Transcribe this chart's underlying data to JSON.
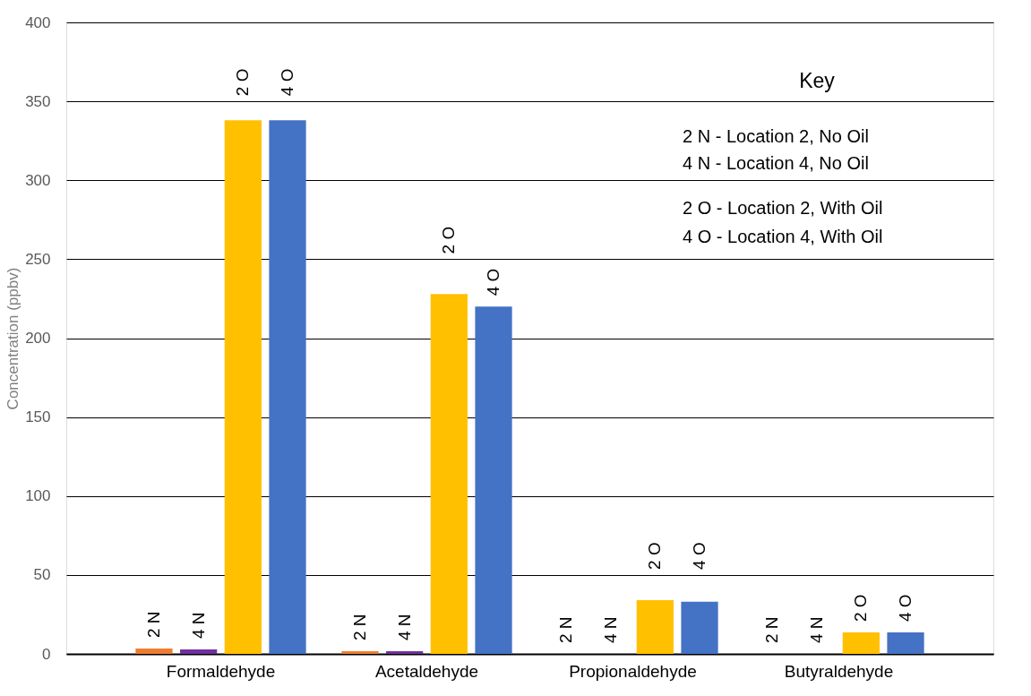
{
  "chart_data": {
    "type": "bar",
    "ylabel": "Concentration (ppbv)",
    "categories": [
      "Formaldehyde",
      "Acetaldehyde",
      "Propionaldehyde",
      "Butyraldehyde"
    ],
    "series": [
      {
        "name": "2 N",
        "color": "#ed7d31",
        "values": [
          3.4,
          1.7,
          0,
          0
        ]
      },
      {
        "name": "4 N",
        "color": "#7030a0",
        "values": [
          2.8,
          1.7,
          0,
          0
        ]
      },
      {
        "name": "2 O",
        "color": "#ffc000",
        "values": [
          338,
          228,
          34,
          13.6
        ]
      },
      {
        "name": "4 O",
        "color": "#4472c4",
        "values": [
          338,
          220,
          33,
          13.6
        ]
      }
    ],
    "ylim": [
      0,
      400
    ],
    "yticks": [
      0,
      50,
      100,
      150,
      200,
      250,
      300,
      350,
      400
    ],
    "grid": "y",
    "legend": false,
    "annotations": [
      "Key",
      "2 N - Location 2, No Oil",
      "4 N - Location 4, No Oil",
      "2 O - Location 2, With Oil",
      "4 O - Location 4, With Oil"
    ]
  }
}
